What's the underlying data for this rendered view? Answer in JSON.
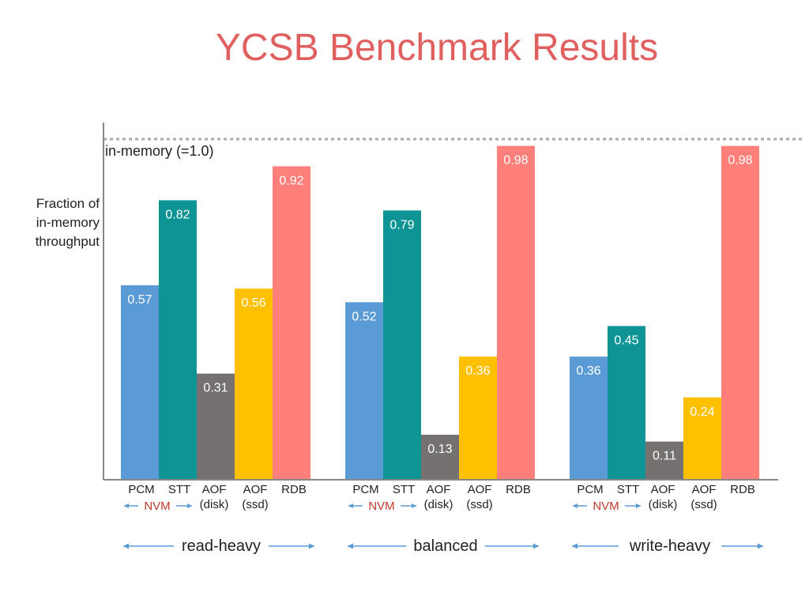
{
  "chart_data": {
    "type": "bar",
    "title": "YCSB Benchmark Results",
    "ylabel_lines": [
      "Fraction of",
      "in-memory",
      "throughput"
    ],
    "reference_line": {
      "label": "in-memory (=1.0)",
      "value": 1.0
    },
    "ylim": [
      0,
      1.0
    ],
    "grid": false,
    "legend": "none",
    "categories": [
      "PCM",
      "STT",
      "AOF",
      "AOF",
      "RDB"
    ],
    "category_sublabels": [
      "",
      "",
      "(disk)",
      "(ssd)",
      ""
    ],
    "nvm_group_label": "NVM",
    "series_colors": [
      "#5b9bd5",
      "#0e9494",
      "#767171",
      "#ffc000",
      "#ff7f7a"
    ],
    "groups": [
      {
        "name": "read-heavy",
        "values": [
          0.57,
          0.82,
          0.31,
          0.56,
          0.92
        ]
      },
      {
        "name": "balanced",
        "values": [
          0.52,
          0.79,
          0.13,
          0.36,
          0.98
        ]
      },
      {
        "name": "write-heavy",
        "values": [
          0.36,
          0.45,
          0.11,
          0.24,
          0.98
        ]
      }
    ]
  },
  "colors": {
    "title": "#e06060",
    "nvm_label": "#c0392b",
    "arrow": "#5b9bd5",
    "axis": "#888888",
    "reference_line": "#aaaaaa",
    "value_label": "#ffffff",
    "text": "#222222"
  }
}
